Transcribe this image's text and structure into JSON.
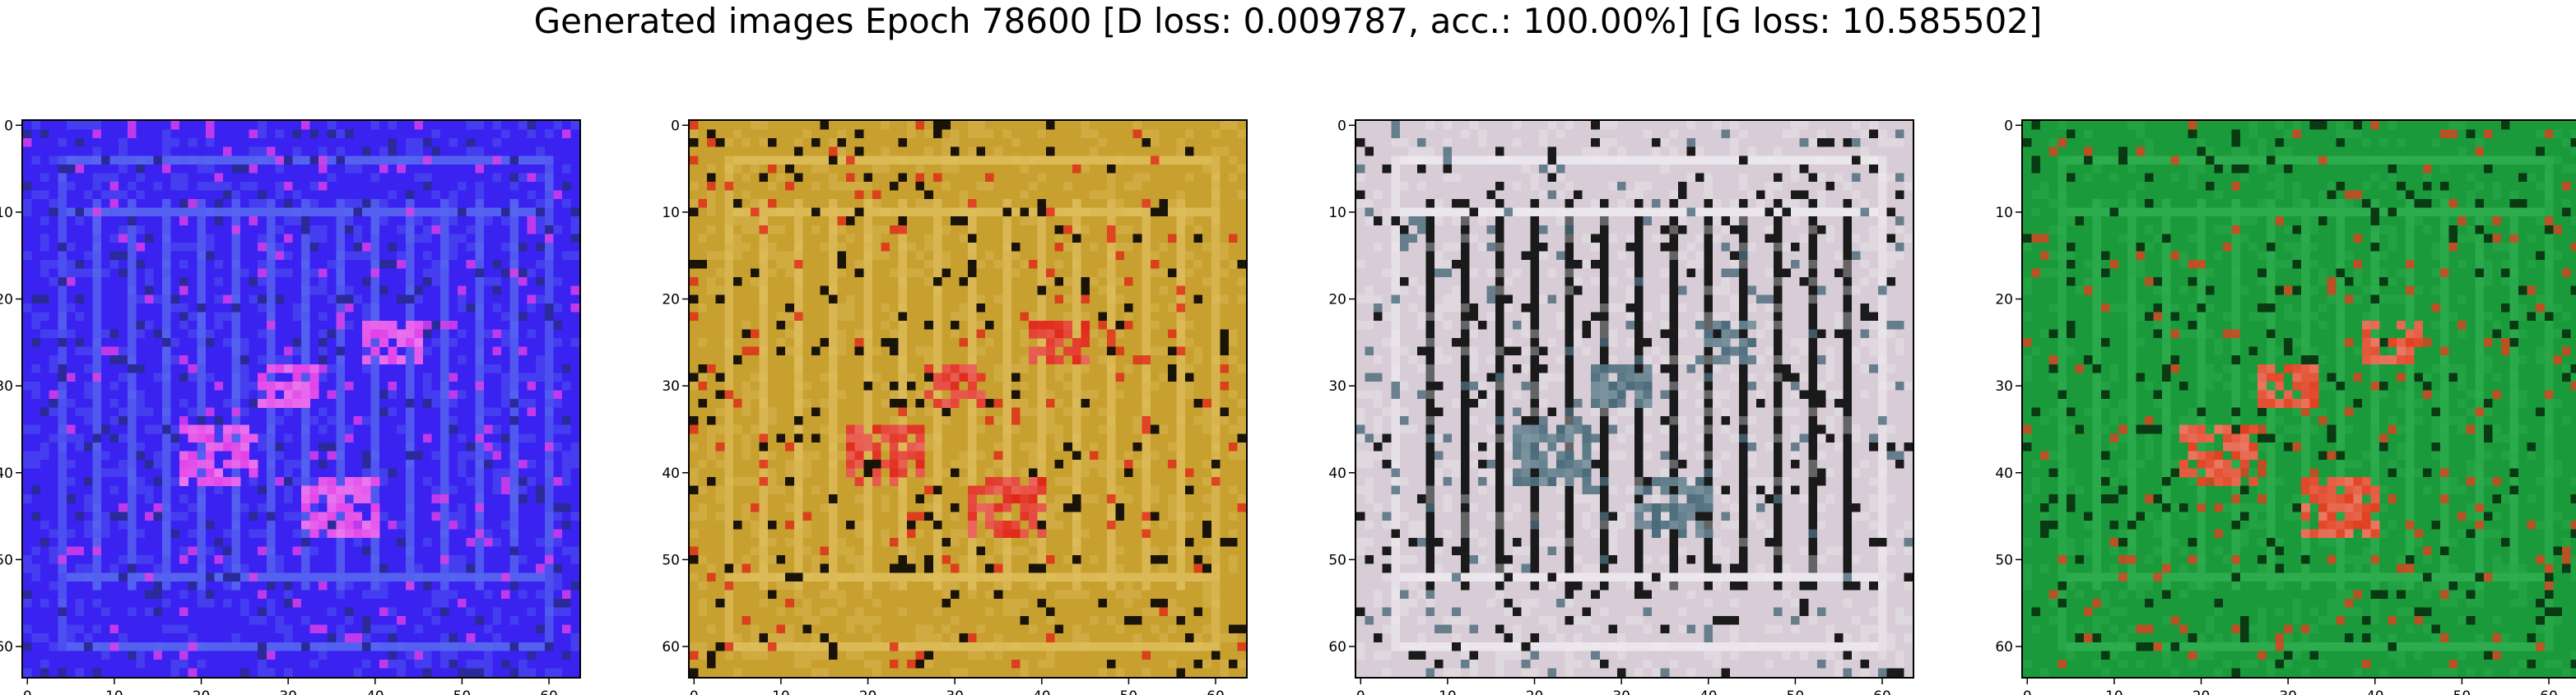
{
  "title": "Generated images Epoch 78600 [D loss: 0.009787, acc.: 100.00%] [G loss: 10.585502]",
  "axes": {
    "x_ticks": [
      "0",
      "10",
      "20",
      "30",
      "40",
      "50",
      "60"
    ],
    "y_ticks": [
      "0",
      "10",
      "20",
      "30",
      "40",
      "50",
      "60"
    ],
    "range": [
      0,
      63
    ]
  },
  "panels": [
    {
      "name": "sample-1",
      "description": "blue noisy generated texture with vertical stripes and magenta blobs",
      "base": "#3a22f0",
      "stripe": "#5a6ff0",
      "accent": "#e040e8",
      "dark": "#2a2a9a"
    },
    {
      "name": "sample-2",
      "description": "golden yellow generated texture with red, white and black stripes",
      "base": "#c8a030",
      "stripe": "#e0c060",
      "accent": "#e02818",
      "dark": "#1a1408"
    },
    {
      "name": "sample-3",
      "description": "light grey-pink generated texture with dark vertical bars",
      "base": "#d8cdd6",
      "stripe": "#f0ecf0",
      "accent": "#4a6a7a",
      "dark": "#1a1a1a"
    },
    {
      "name": "sample-4",
      "description": "green generated texture with scattered red and orange blobs",
      "base": "#1a9a3a",
      "stripe": "#30b050",
      "accent": "#e04020",
      "dark": "#0a3a14"
    }
  ]
}
